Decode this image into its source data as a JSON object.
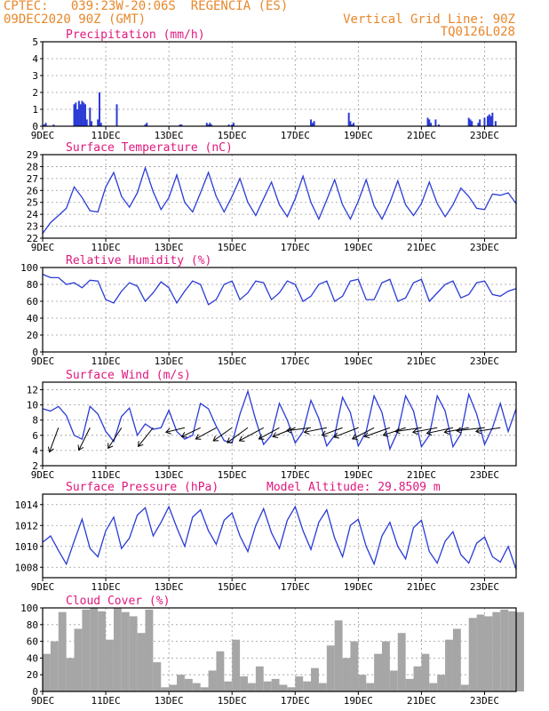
{
  "header": {
    "line1": "CPTEC:   039:23W-20:06S  REGENCIA (ES)",
    "line2": "09DEC2020 90Z (GMT)",
    "right1": "Vertical Grid Line: 90Z",
    "right2": "TQ0126L028"
  },
  "colors": {
    "header": "#e8872a",
    "title": "#e0177d",
    "line": "#2a3bd6",
    "cloud": "#a6a6a6",
    "grid": "#9a9a9a"
  },
  "x_ticks": [
    "9DEC",
    "11DEC",
    "13DEC",
    "15DEC",
    "17DEC",
    "19DEC",
    "21DEC",
    "23DEC"
  ],
  "x_tick_days": [
    0,
    2,
    4,
    6,
    8,
    10,
    12,
    14
  ],
  "chart_data": [
    {
      "type": "bar",
      "title": "Precipitation (mm/h)",
      "ylim": [
        0,
        5
      ],
      "yticks": [
        0,
        1,
        2,
        3,
        4,
        5
      ],
      "x_unit": "days since 9DEC 00Z",
      "x": [
        0.05,
        0.1,
        0.35,
        1.0,
        1.05,
        1.1,
        1.15,
        1.2,
        1.25,
        1.3,
        1.35,
        1.4,
        1.5,
        1.55,
        1.75,
        1.8,
        1.85,
        2.35,
        3.25,
        3.3,
        4.35,
        4.4,
        5.2,
        5.25,
        5.3,
        5.35,
        5.9,
        6.0,
        6.05,
        8.5,
        8.55,
        8.6,
        9.7,
        9.75,
        9.8,
        9.85,
        12.2,
        12.25,
        12.3,
        12.45,
        12.55,
        13.5,
        13.55,
        13.6,
        13.8,
        13.85,
        14.0,
        14.1,
        14.15,
        14.2,
        14.25,
        14.35
      ],
      "values": [
        0.1,
        0.2,
        0.1,
        1.3,
        1.4,
        1.0,
        1.5,
        1.3,
        1.5,
        1.4,
        1.3,
        0.4,
        1.1,
        0.3,
        0.4,
        2.0,
        0.2,
        1.3,
        0.1,
        0.2,
        0.1,
        0.1,
        0.2,
        0.1,
        0.2,
        0.1,
        0.1,
        0.1,
        0.2,
        0.4,
        0.2,
        0.3,
        0.8,
        0.3,
        0.1,
        0.2,
        0.5,
        0.4,
        0.2,
        0.4,
        0.1,
        0.5,
        0.4,
        0.3,
        0.2,
        0.4,
        0.5,
        0.6,
        0.7,
        0.6,
        0.8,
        0.3
      ]
    },
    {
      "type": "line",
      "title": "Surface Temperature (nC)",
      "ylim": [
        22,
        29
      ],
      "yticks": [
        22,
        23,
        24,
        25,
        26,
        27,
        28,
        29
      ],
      "x": [
        0,
        0.25,
        0.5,
        0.75,
        1.0,
        1.25,
        1.5,
        1.75,
        2.0,
        2.25,
        2.5,
        2.75,
        3.0,
        3.25,
        3.5,
        3.75,
        4.0,
        4.25,
        4.5,
        4.75,
        5.0,
        5.25,
        5.5,
        5.75,
        6.0,
        6.25,
        6.5,
        6.75,
        7.0,
        7.25,
        7.5,
        7.75,
        8.0,
        8.25,
        8.5,
        8.75,
        9.0,
        9.25,
        9.5,
        9.75,
        10.0,
        10.25,
        10.5,
        10.75,
        11.0,
        11.25,
        11.5,
        11.75,
        12.0,
        12.25,
        12.5,
        12.75,
        13.0,
        13.25,
        13.5,
        13.75,
        14.0,
        14.25,
        14.5,
        14.75,
        15.0
      ],
      "values": [
        22.4,
        23.3,
        23.9,
        24.5,
        26.3,
        25.4,
        24.3,
        24.2,
        26.3,
        27.5,
        25.5,
        24.6,
        25.8,
        27.9,
        25.9,
        24.4,
        25.4,
        27.3,
        25.0,
        24.2,
        25.8,
        27.5,
        25.5,
        24.2,
        25.5,
        27.0,
        25.0,
        23.9,
        25.3,
        26.7,
        24.8,
        23.8,
        25.3,
        27.2,
        25.0,
        23.6,
        25.2,
        26.9,
        24.8,
        23.6,
        25.1,
        26.9,
        24.7,
        23.6,
        25.0,
        26.8,
        24.8,
        23.9,
        24.9,
        26.7,
        24.9,
        23.8,
        24.8,
        26.2,
        25.5,
        24.5,
        24.4,
        25.7,
        25.6,
        25.8,
        24.9
      ]
    },
    {
      "type": "line",
      "title": "Relative Humidity (%)",
      "ylim": [
        0,
        100
      ],
      "yticks": [
        0,
        20,
        40,
        60,
        80,
        100
      ],
      "x": [
        0,
        0.25,
        0.5,
        0.75,
        1.0,
        1.25,
        1.5,
        1.75,
        2.0,
        2.25,
        2.5,
        2.75,
        3.0,
        3.25,
        3.5,
        3.75,
        4.0,
        4.25,
        4.5,
        4.75,
        5.0,
        5.25,
        5.5,
        5.75,
        6.0,
        6.25,
        6.5,
        6.75,
        7.0,
        7.25,
        7.5,
        7.75,
        8.0,
        8.25,
        8.5,
        8.75,
        9.0,
        9.25,
        9.5,
        9.75,
        10.0,
        10.25,
        10.5,
        10.75,
        11.0,
        11.25,
        11.5,
        11.75,
        12.0,
        12.25,
        12.5,
        12.75,
        13.0,
        13.25,
        13.5,
        13.75,
        14.0,
        14.25,
        14.5,
        14.75,
        15.0
      ],
      "values": [
        92,
        88,
        88,
        80,
        82,
        76,
        85,
        84,
        62,
        58,
        72,
        82,
        78,
        60,
        70,
        83,
        76,
        58,
        72,
        84,
        80,
        56,
        62,
        80,
        84,
        62,
        70,
        84,
        82,
        62,
        70,
        84,
        80,
        60,
        66,
        80,
        84,
        60,
        66,
        84,
        86,
        62,
        62,
        82,
        86,
        60,
        64,
        82,
        86,
        60,
        70,
        80,
        84,
        64,
        68,
        82,
        84,
        68,
        66,
        72,
        75
      ]
    },
    {
      "type": "line",
      "title": "Surface Wind (m/s)",
      "ylim": [
        2,
        13
      ],
      "yticks": [
        2,
        4,
        6,
        8,
        10,
        12
      ],
      "x": [
        0,
        0.25,
        0.5,
        0.75,
        1.0,
        1.25,
        1.5,
        1.75,
        2.0,
        2.25,
        2.5,
        2.75,
        3.0,
        3.25,
        3.5,
        3.75,
        4.0,
        4.25,
        4.5,
        4.75,
        5.0,
        5.25,
        5.5,
        5.75,
        6.0,
        6.25,
        6.5,
        6.75,
        7.0,
        7.25,
        7.5,
        7.75,
        8.0,
        8.25,
        8.5,
        8.75,
        9.0,
        9.25,
        9.5,
        9.75,
        10.0,
        10.25,
        10.5,
        10.75,
        11.0,
        11.25,
        11.5,
        11.75,
        12.0,
        12.25,
        12.5,
        12.75,
        13.0,
        13.25,
        13.5,
        13.75,
        14.0,
        14.25,
        14.5,
        14.75,
        15.0
      ],
      "values": [
        9.5,
        9.2,
        9.8,
        8.6,
        6.0,
        5.5,
        9.8,
        8.8,
        6.5,
        5.2,
        8.5,
        9.6,
        6.0,
        7.5,
        6.8,
        7.0,
        9.3,
        6.5,
        5.5,
        6.0,
        10.2,
        9.5,
        7.2,
        5.3,
        5.0,
        8.8,
        11.8,
        8.0,
        4.8,
        6.0,
        10.2,
        8.0,
        5.0,
        6.5,
        10.6,
        8.2,
        4.6,
        6.0,
        11.0,
        9.0,
        4.6,
        6.5,
        11.2,
        9.0,
        4.2,
        6.5,
        11.2,
        9.2,
        4.5,
        6.0,
        11.2,
        9.2,
        4.5,
        6.2,
        11.4,
        8.8,
        4.8,
        7.0,
        10.2,
        6.5,
        9.5
      ]
    },
    {
      "type": "line",
      "title": "Surface Pressure (hPa)",
      "annotation": "Model Altitude: 29.8509 m",
      "ylim": [
        1007,
        1015
      ],
      "yticks": [
        1008,
        1010,
        1012,
        1014
      ],
      "x": [
        0,
        0.25,
        0.5,
        0.75,
        1.0,
        1.25,
        1.5,
        1.75,
        2.0,
        2.25,
        2.5,
        2.75,
        3.0,
        3.25,
        3.5,
        3.75,
        4.0,
        4.25,
        4.5,
        4.75,
        5.0,
        5.25,
        5.5,
        5.75,
        6.0,
        6.25,
        6.5,
        6.75,
        7.0,
        7.25,
        7.5,
        7.75,
        8.0,
        8.25,
        8.5,
        8.75,
        9.0,
        9.25,
        9.5,
        9.75,
        10.0,
        10.25,
        10.5,
        10.75,
        11.0,
        11.25,
        11.5,
        11.75,
        12.0,
        12.25,
        12.5,
        12.75,
        13.0,
        13.25,
        13.5,
        13.75,
        14.0,
        14.25,
        14.5,
        14.75,
        15.0
      ],
      "values": [
        1010.4,
        1011.0,
        1009.6,
        1008.3,
        1010.5,
        1012.6,
        1009.8,
        1009.0,
        1011.5,
        1012.8,
        1009.8,
        1010.8,
        1013.0,
        1013.7,
        1011.0,
        1012.3,
        1013.8,
        1011.8,
        1010.0,
        1012.8,
        1013.5,
        1011.5,
        1010.2,
        1012.5,
        1013.2,
        1011.0,
        1009.5,
        1012.0,
        1013.6,
        1011.3,
        1009.8,
        1012.5,
        1013.8,
        1011.5,
        1009.7,
        1012.3,
        1013.5,
        1010.8,
        1009.0,
        1012.0,
        1012.6,
        1010.0,
        1008.3,
        1011.0,
        1012.3,
        1010.0,
        1008.8,
        1011.8,
        1012.5,
        1009.5,
        1008.4,
        1010.5,
        1011.4,
        1009.2,
        1008.4,
        1010.3,
        1010.9,
        1009.0,
        1008.5,
        1010.0,
        1007.8
      ]
    },
    {
      "type": "bar",
      "title": "Cloud Cover (%)",
      "ylim": [
        0,
        100
      ],
      "yticks": [
        0,
        20,
        40,
        60,
        80,
        100
      ],
      "x": [
        0,
        0.25,
        0.5,
        0.75,
        1.0,
        1.25,
        1.5,
        1.75,
        2.0,
        2.25,
        2.5,
        2.75,
        3.0,
        3.25,
        3.5,
        3.75,
        4.0,
        4.25,
        4.5,
        4.75,
        5.0,
        5.25,
        5.5,
        5.75,
        6.0,
        6.25,
        6.5,
        6.75,
        7.0,
        7.25,
        7.5,
        7.75,
        8.0,
        8.25,
        8.5,
        8.75,
        9.0,
        9.25,
        9.5,
        9.75,
        10.0,
        10.25,
        10.5,
        10.75,
        11.0,
        11.25,
        11.5,
        11.75,
        12.0,
        12.25,
        12.5,
        12.75,
        13.0,
        13.25,
        13.5,
        13.75,
        14.0,
        14.25,
        14.5,
        14.75,
        15.0
      ],
      "values": [
        45,
        60,
        95,
        40,
        75,
        98,
        100,
        96,
        62,
        100,
        95,
        90,
        70,
        98,
        35,
        5,
        8,
        20,
        15,
        10,
        5,
        25,
        48,
        12,
        62,
        18,
        10,
        30,
        12,
        15,
        8,
        5,
        18,
        12,
        28,
        10,
        55,
        85,
        40,
        60,
        20,
        10,
        45,
        60,
        25,
        70,
        15,
        30,
        45,
        10,
        20,
        62,
        75,
        8,
        88,
        92,
        90,
        95,
        98,
        96,
        95
      ]
    }
  ],
  "wind_vectors": {
    "x": [
      0.5,
      1.5,
      2.5,
      3.5,
      4.5,
      5.0,
      5.5,
      6.0,
      6.5,
      7.0,
      7.5,
      8.0,
      8.5,
      9.0,
      9.5,
      10.0,
      10.5,
      11.0,
      11.5,
      12.0,
      12.5,
      13.0,
      13.5,
      14.0,
      14.5
    ],
    "u": [
      -2.4,
      -3.0,
      -3.6,
      -4.0,
      -5.0,
      -5.0,
      -5.5,
      -5.0,
      -5.5,
      -6.5,
      -5.5,
      -6.0,
      -6.5,
      -6.0,
      -5.5,
      -6.5,
      -5.8,
      -6.8,
      -6.0,
      -7.0,
      -6.5,
      -7.0,
      -6.5,
      -7.5,
      -6.5
    ],
    "v": [
      -6.5,
      -6.0,
      -5.5,
      -5.0,
      -1.2,
      -2.4,
      -3.0,
      -3.5,
      -4.0,
      -3.5,
      -3.0,
      -2.4,
      -0.8,
      -1.2,
      -2.0,
      -2.5,
      -3.0,
      -2.4,
      -2.0,
      -1.0,
      -1.2,
      -1.5,
      -1.2,
      -0.8,
      -1.0
    ]
  }
}
